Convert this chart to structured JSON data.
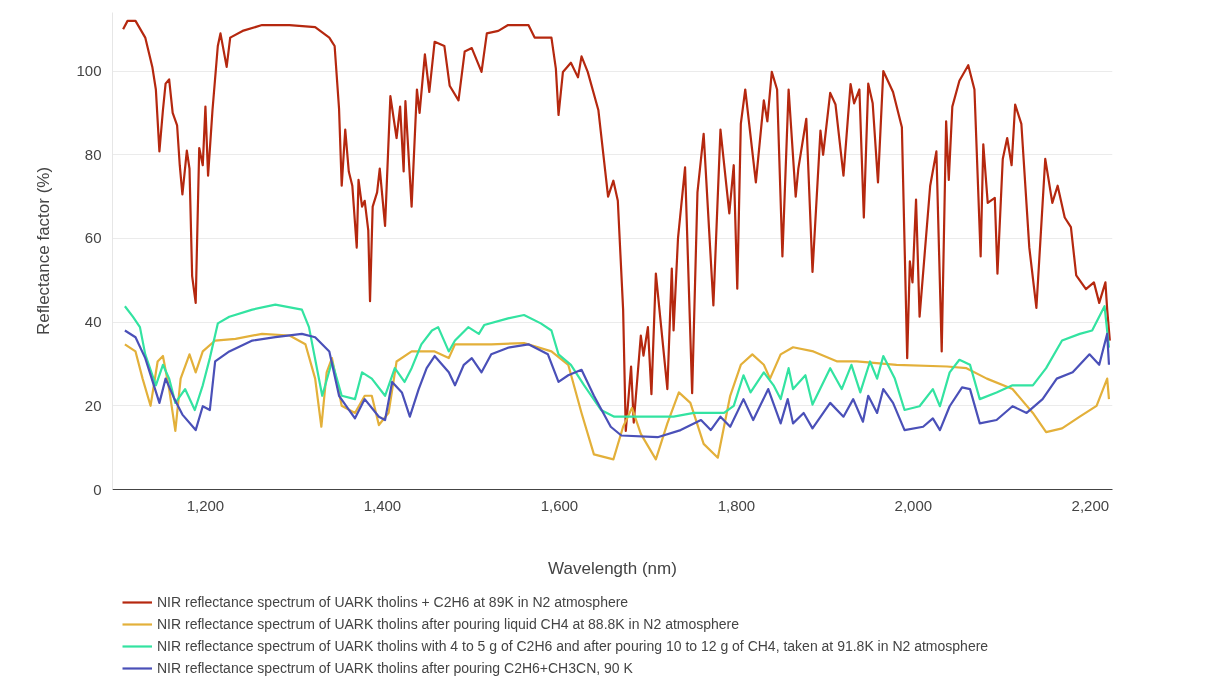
{
  "chart_data": {
    "type": "line",
    "xlabel": "Wavelength (nm)",
    "ylabel": "Reflectance factor (%)",
    "xlim": [
      1095,
      2225
    ],
    "ylim": [
      0,
      114
    ],
    "xticks": [
      {
        "value": 1200,
        "label": "1,200"
      },
      {
        "value": 1400,
        "label": "1,400"
      },
      {
        "value": 1600,
        "label": "1,600"
      },
      {
        "value": 1800,
        "label": "1,800"
      },
      {
        "value": 2000,
        "label": "2,000"
      },
      {
        "value": 2200,
        "label": "2,200"
      }
    ],
    "yticks": [
      0,
      20,
      40,
      60,
      80,
      100
    ],
    "grid": "y",
    "legend": "bottom",
    "series": [
      {
        "name": "NIR reflectance spectrum of UARK tholins + C2H6 at 89K in N2 atmosphere",
        "color": "#b5280f",
        "x": [
          1107,
          1112,
          1121,
          1132,
          1140,
          1144,
          1148,
          1152,
          1155,
          1159,
          1163,
          1168,
          1171,
          1174,
          1179,
          1182,
          1185,
          1189,
          1193,
          1197,
          1200,
          1203,
          1208,
          1214,
          1217,
          1224,
          1228,
          1242,
          1264,
          1295,
          1324,
          1340,
          1343,
          1346,
          1351,
          1354,
          1358,
          1362,
          1366,
          1371,
          1373,
          1377,
          1380,
          1384,
          1386,
          1389,
          1394,
          1397,
          1403,
          1409,
          1416,
          1420,
          1424,
          1426,
          1433,
          1439,
          1442,
          1448,
          1453,
          1459,
          1470,
          1476,
          1486,
          1493,
          1501,
          1512,
          1518,
          1531,
          1542,
          1565,
          1572,
          1591,
          1596,
          1599,
          1604,
          1613,
          1621,
          1625,
          1632,
          1644,
          1655,
          1661,
          1666,
          1672,
          1675,
          1681,
          1684,
          1692,
          1695,
          1700,
          1704,
          1709,
          1722,
          1727,
          1729,
          1734,
          1742,
          1750,
          1756,
          1763,
          1774,
          1782,
          1792,
          1797,
          1801,
          1805,
          1810,
          1822,
          1831,
          1835,
          1840,
          1846,
          1852,
          1859,
          1867,
          1870,
          1879,
          1886,
          1895,
          1898,
          1906,
          1912,
          1921,
          1929,
          1933,
          1939,
          1944,
          1949,
          1954,
          1960,
          1966,
          1977,
          1987,
          1993,
          1996,
          1999,
          2003,
          2007,
          2019,
          2026,
          2032,
          2037,
          2040,
          2044,
          2052,
          2062,
          2069,
          2076,
          2079,
          2084,
          2092,
          2095,
          2101,
          2106,
          2111,
          2115,
          2122,
          2131,
          2139,
          2149,
          2157,
          2163,
          2171,
          2178,
          2184,
          2195,
          2204,
          2210,
          2217,
          2219,
          2222
        ],
        "values": [
          110,
          112,
          112,
          108,
          101,
          95.6,
          80.8,
          90.7,
          97,
          98,
          90,
          87,
          77.5,
          70.5,
          81,
          76.7,
          51,
          44.6,
          81.6,
          77.5,
          91.5,
          75,
          90.7,
          106,
          109,
          101,
          108,
          109.6,
          111,
          111,
          110.5,
          108,
          107,
          106,
          91,
          72.6,
          86,
          76,
          72.6,
          57.8,
          74,
          67.6,
          69,
          62,
          45,
          67.6,
          71,
          76.7,
          63,
          94,
          84,
          91.5,
          76,
          92.8,
          67.6,
          95.6,
          90,
          104,
          95,
          107,
          106,
          96.5,
          93,
          104.7,
          105.5,
          99.8,
          109,
          109.6,
          111,
          111,
          108,
          108,
          100.6,
          89.5,
          99.8,
          102,
          98.5,
          103.5,
          99.8,
          90.7,
          70,
          73.8,
          69,
          43,
          14,
          29.4,
          16,
          36.8,
          32,
          38.8,
          22.8,
          51.6,
          24,
          52.8,
          38,
          60,
          77,
          23,
          71,
          85,
          44,
          86,
          66,
          77.5,
          48,
          87.4,
          95.6,
          73.4,
          93,
          88,
          99.8,
          95.6,
          55.7,
          95.6,
          70,
          76.7,
          88.6,
          52,
          85.8,
          80,
          94.8,
          92,
          75,
          96.9,
          92.3,
          95.6,
          65,
          97,
          92.3,
          73.4,
          100,
          95,
          86.6,
          31.4,
          54.5,
          49.5,
          69.3,
          41.3,
          72.6,
          80.8,
          33,
          88,
          74,
          91.5,
          97.7,
          101.4,
          95.6,
          55.7,
          82.5,
          68.5,
          69.7,
          51.6,
          79,
          84,
          77.5,
          92,
          87.4,
          57.8,
          43.4,
          79,
          68.5,
          72.6,
          65,
          62.7,
          51.2,
          47.9,
          49.5,
          44.6,
          49.5,
          43,
          35.6
        ]
      },
      {
        "name": "NIR reflectance spectrum of UARK tholins after pouring liquid CH4 at 88.8K in N2 atmosphere",
        "color": "#e3b03a",
        "x": [
          1109,
          1121,
          1129,
          1138,
          1146,
          1152,
          1159,
          1166,
          1172,
          1182,
          1189,
          1197,
          1211,
          1234,
          1264,
          1295,
          1313,
          1324,
          1331,
          1337,
          1343,
          1354,
          1369,
          1380,
          1388,
          1396,
          1407,
          1416,
          1433,
          1459,
          1475,
          1482,
          1523,
          1560,
          1591,
          1610,
          1625,
          1639,
          1661,
          1672,
          1682,
          1692,
          1709,
          1722,
          1735,
          1748,
          1763,
          1779,
          1793,
          1805,
          1818,
          1831,
          1838,
          1850,
          1864,
          1887,
          1914,
          1936,
          1981,
          2038,
          2060,
          2083,
          2112,
          2135,
          2150,
          2168,
          2188,
          2207,
          2219,
          2221
        ],
        "values": [
          34.7,
          33,
          26.5,
          20,
          30.6,
          31.9,
          24,
          14,
          26.5,
          32.3,
          28,
          33,
          35.6,
          36,
          37.2,
          36.8,
          34.7,
          26.5,
          15,
          28,
          31.4,
          20,
          18.3,
          22.4,
          22.4,
          15.4,
          18.3,
          30.6,
          33,
          33,
          31.4,
          34.7,
          34.7,
          35,
          33,
          29.8,
          18.3,
          8.4,
          7.2,
          15,
          19.5,
          13.3,
          7.2,
          15.8,
          23.2,
          20.7,
          10.9,
          7.6,
          22.4,
          29.8,
          32.3,
          29.8,
          26.5,
          32.3,
          34,
          33,
          30.6,
          30.6,
          29.8,
          29.4,
          29,
          26.5,
          24,
          18.3,
          13.7,
          14.6,
          17.4,
          20,
          26.5,
          21.6
        ]
      },
      {
        "name": "NIR reflectance spectrum of UARK tholins with 4 to 5 g of C2H6 and after pouring 10 to 12 g of CH4, taken at 91.8K in N2 atmosphere",
        "color": "#33e3a1",
        "x": [
          1109,
          1118,
          1126,
          1132,
          1144,
          1152,
          1159,
          1166,
          1177,
          1188,
          1197,
          1205,
          1214,
          1227,
          1253,
          1279,
          1309,
          1317,
          1332,
          1343,
          1354,
          1369,
          1377,
          1388,
          1403,
          1414,
          1425,
          1433,
          1444,
          1456,
          1463,
          1475,
          1482,
          1497,
          1509,
          1515,
          1542,
          1560,
          1579,
          1591,
          1599,
          1613,
          1628,
          1647,
          1662,
          1692,
          1729,
          1752,
          1786,
          1797,
          1808,
          1816,
          1831,
          1842,
          1850,
          1859,
          1864,
          1878,
          1886,
          1906,
          1919,
          1930,
          1940,
          1951,
          1959,
          1966,
          1979,
          1990,
          2007,
          2022,
          2030,
          2041,
          2052,
          2064,
          2075,
          2094,
          2112,
          2135,
          2150,
          2168,
          2188,
          2202,
          2216,
          2221
        ],
        "values": [
          43.8,
          41.3,
          38.8,
          32.3,
          24.9,
          29.8,
          26.5,
          20.7,
          24,
          19,
          24.9,
          31.4,
          39.7,
          41.3,
          43,
          44.2,
          43,
          38.8,
          22.4,
          30.6,
          22.4,
          21.6,
          28,
          26.5,
          22.4,
          29,
          25.7,
          29,
          34.7,
          38,
          38.8,
          33,
          35.6,
          38.8,
          37.2,
          39.3,
          40.9,
          41.7,
          39.7,
          38,
          32.3,
          29.8,
          24.9,
          19,
          17.4,
          17.4,
          17.4,
          18.3,
          18.3,
          20,
          27.3,
          23.2,
          28,
          24.9,
          21.6,
          29,
          24,
          27.3,
          20.3,
          29,
          24,
          29.8,
          23.2,
          30.6,
          26.5,
          31.9,
          26.5,
          19,
          19.9,
          24,
          19.9,
          28,
          31,
          29.8,
          21.6,
          23.2,
          24.9,
          24.9,
          29,
          35.6,
          37.2,
          38,
          43.8,
          33.9
        ]
      },
      {
        "name": "NIR reflectance spectrum of UARK tholins after pouring C2H6+CH3CN, 90 K",
        "color": "#4a50b8",
        "x": [
          1109,
          1121,
          1132,
          1148,
          1155,
          1165,
          1174,
          1189,
          1197,
          1205,
          1211,
          1227,
          1253,
          1279,
          1309,
          1324,
          1340,
          1351,
          1369,
          1380,
          1396,
          1403,
          1411,
          1422,
          1431,
          1441,
          1450,
          1459,
          1475,
          1482,
          1492,
          1501,
          1512,
          1523,
          1542,
          1565,
          1587,
          1599,
          1610,
          1625,
          1639,
          1658,
          1670,
          1711,
          1737,
          1760,
          1771,
          1782,
          1793,
          1808,
          1819,
          1836,
          1850,
          1858,
          1864,
          1876,
          1886,
          1906,
          1921,
          1932,
          1943,
          1949,
          1959,
          1966,
          1977,
          1990,
          2011,
          2022,
          2030,
          2041,
          2055,
          2064,
          2075,
          2094,
          2112,
          2128,
          2146,
          2162,
          2180,
          2199,
          2210,
          2219,
          2221
        ],
        "values": [
          38,
          36.4,
          31.4,
          20.7,
          26.5,
          21.6,
          17.9,
          14.2,
          19.9,
          19,
          30.6,
          33,
          35.6,
          36.4,
          37.2,
          36.4,
          33,
          22.4,
          17,
          21.6,
          17.4,
          16.6,
          25.7,
          23.2,
          17.4,
          24,
          29,
          31.9,
          28,
          24.9,
          29.8,
          31.4,
          28,
          32.3,
          33.9,
          34.7,
          32.3,
          25.7,
          27.3,
          28.6,
          22.4,
          15,
          12.9,
          12.5,
          14.2,
          16.6,
          14.2,
          17.4,
          15,
          21.6,
          16.6,
          24,
          15.8,
          21.6,
          15.8,
          18.3,
          14.6,
          20.7,
          17.4,
          21.6,
          16.2,
          22.4,
          18.3,
          24,
          20.7,
          14.2,
          15,
          17,
          14.2,
          19.9,
          24.4,
          24,
          15.8,
          16.6,
          19.9,
          18.3,
          21.6,
          26.5,
          28,
          32.3,
          29.8,
          37.2,
          29.8
        ]
      }
    ]
  }
}
